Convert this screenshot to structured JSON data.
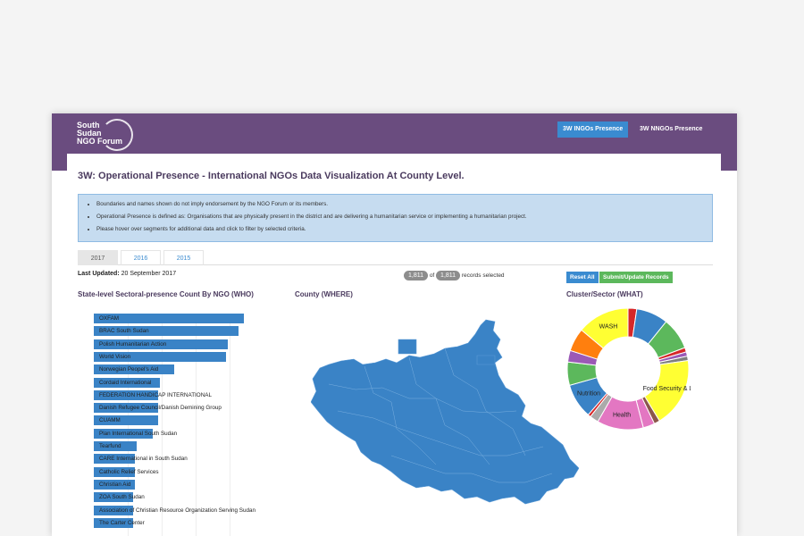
{
  "nav": {
    "logo_lines": [
      "South",
      "Sudan",
      "NGO Forum"
    ],
    "tabs": [
      "3W INGOs Presence",
      "3W NNGOs Presence"
    ]
  },
  "page": {
    "title": "3W: Operational Presence - International NGOs Data Visualization At County Level.",
    "info": [
      "Boundaries and names shown do not imply endorsement by the NGO Forum or its members.",
      "Operational Presence is defined as: Organisations that are physically present in the district and are delivering a humanitarian service or implementing a humanitarian project.",
      "Please hover over segments for additional data and click to filter by selected criteria."
    ],
    "year_tabs": [
      "2017",
      "2016",
      "2015"
    ],
    "last_updated_label": "Last Updated:",
    "last_updated_value": "20 September 2017",
    "selected_count": "1,811",
    "of_label": "of",
    "total_count": "1,811",
    "records_label": "records selected",
    "reset_label": "Reset All",
    "submit_label": "Submit/Update Records"
  },
  "sections": {
    "who": "State-level Sectoral-presence Count By NGO (WHO)",
    "where": "County (WHERE)",
    "what": "Cluster/Sector (WHAT)"
  },
  "colors": {
    "brand": "#6a4c7f",
    "accent": "#3a8bd0",
    "bar": "#3a83c6",
    "map": "#3a83c6"
  },
  "chart_data": [
    {
      "type": "bar",
      "orientation": "horizontal",
      "categories": [
        "OXFAM",
        "BRAC South Sudan",
        "Polish Humanitarian Action",
        "World Vision",
        "Norwegian Peopel's Aid",
        "Cordaid International",
        "FEDERATION HANDICAP INTERNATIONAL",
        "Danish Refugee Council/Danish Demining Group",
        "CUAMM",
        "Plan International South Sudan",
        "Tearfund",
        "CARE International in South Sudan",
        "Catholic Relief Services",
        "Christian Aid",
        "ZOA South Sudan",
        "Association of Christian Resource Organization Serving Sudan",
        "The Carter Center"
      ],
      "values": [
        84,
        81,
        75,
        74,
        45,
        37,
        36,
        36,
        36,
        33,
        24,
        23,
        23,
        23,
        22,
        22,
        22
      ]
    },
    {
      "type": "pie",
      "donut": true,
      "labels": [
        "Health",
        "Food Security & Livelihoods",
        "WASH",
        "Nutrition"
      ],
      "slices": [
        {
          "label": "",
          "value": 3,
          "color": "#d62728"
        },
        {
          "label": "",
          "value": 11,
          "color": "#3a83c6"
        },
        {
          "label": "",
          "value": 11,
          "color": "#5cb85c"
        },
        {
          "label": "",
          "value": 1.5,
          "color": "#d62728"
        },
        {
          "label": "",
          "value": 1.5,
          "color": "#9b59b6"
        },
        {
          "label": "",
          "value": 1.5,
          "color": "#7f7f7f"
        },
        {
          "label": "Food Security & Liv",
          "value": 24,
          "color": "#ffff33"
        },
        {
          "label": "",
          "value": 2,
          "color": "#8c564b"
        },
        {
          "label": "",
          "value": 4,
          "color": "#e377c2"
        },
        {
          "label": "Health",
          "value": 16,
          "color": "#e377c2"
        },
        {
          "label": "",
          "value": 3,
          "color": "#aaaaaa"
        },
        {
          "label": "",
          "value": 1,
          "color": "#d62728"
        },
        {
          "label": "Nutrition",
          "value": 12,
          "color": "#3a83c6"
        },
        {
          "label": "",
          "value": 8,
          "color": "#5cb85c"
        },
        {
          "label": "",
          "value": 4,
          "color": "#9b59b6"
        },
        {
          "label": "",
          "value": 8,
          "color": "#ff7f0e"
        },
        {
          "label": "WASH",
          "value": 18,
          "color": "#ffff33"
        }
      ]
    }
  ]
}
